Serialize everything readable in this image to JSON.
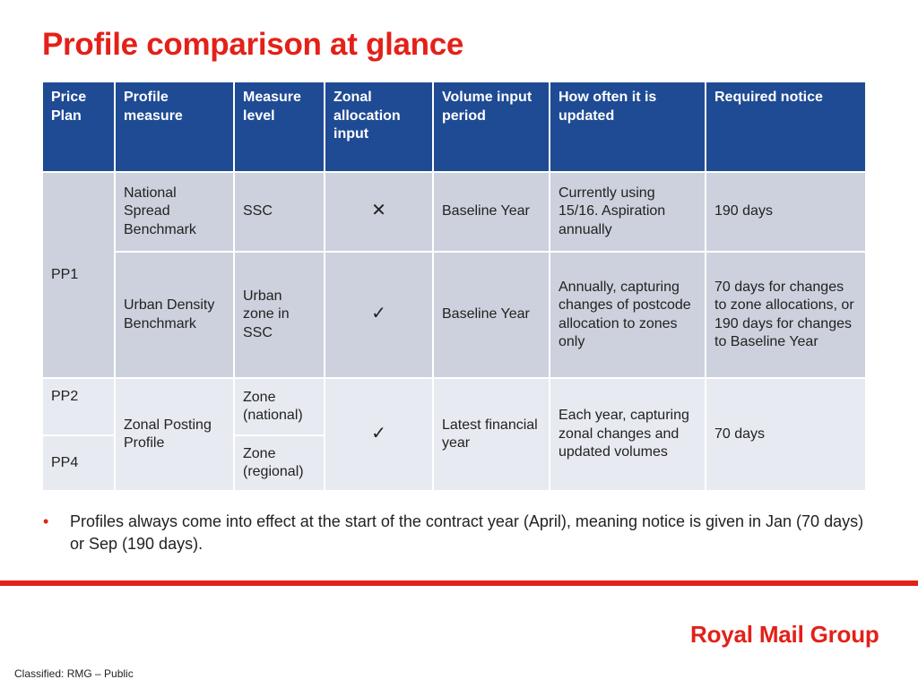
{
  "title": "Profile comparison at glance",
  "table": {
    "headers": {
      "price_plan": "Price Plan",
      "profile_measure": "Profile measure",
      "measure_level": "Measure level",
      "zonal_allocation": "Zonal allocation input",
      "volume_period": "Volume input period",
      "update_frequency": "How often it is updated",
      "required_notice": "Required notice"
    },
    "rows": {
      "pp1_national": {
        "price_plan": "PP1",
        "profile": "National Spread Benchmark",
        "measure_level": "SSC",
        "zonal_mark": "✕",
        "volume_period": "Baseline Year",
        "update": "Currently using 15/16. Aspiration annually",
        "notice": "190 days"
      },
      "pp1_urban": {
        "profile": "Urban Density Benchmark",
        "measure_level": "Urban zone in SSC",
        "zonal_mark": "✓",
        "volume_period": "Baseline Year",
        "update": "Annually, capturing changes of postcode allocation to zones only",
        "notice": "70 days for changes to zone allocations, or 190 days for changes to Baseline Year"
      },
      "pp2": {
        "price_plan": "PP2",
        "profile": "Zonal Posting Profile",
        "measure_level": "Zone (national)",
        "zonal_mark": "✓",
        "volume_period": "Latest financial year",
        "update": "Each year, capturing zonal changes and updated volumes",
        "notice": "70 days"
      },
      "pp4": {
        "price_plan": "PP4",
        "measure_level": "Zone (regional)"
      }
    }
  },
  "bullet": {
    "marker": "•",
    "text": "Profiles always come into effect at the start of the contract year (April), meaning notice is given in Jan (70 days) or Sep (190 days)."
  },
  "footer": {
    "brand": "Royal Mail Group",
    "classification": "Classified: RMG – Public"
  },
  "colors": {
    "accent_red": "#e32119",
    "header_blue": "#1f4b94",
    "row_band_dark": "#ccd1dd",
    "row_band_light": "#e8eaf1"
  }
}
